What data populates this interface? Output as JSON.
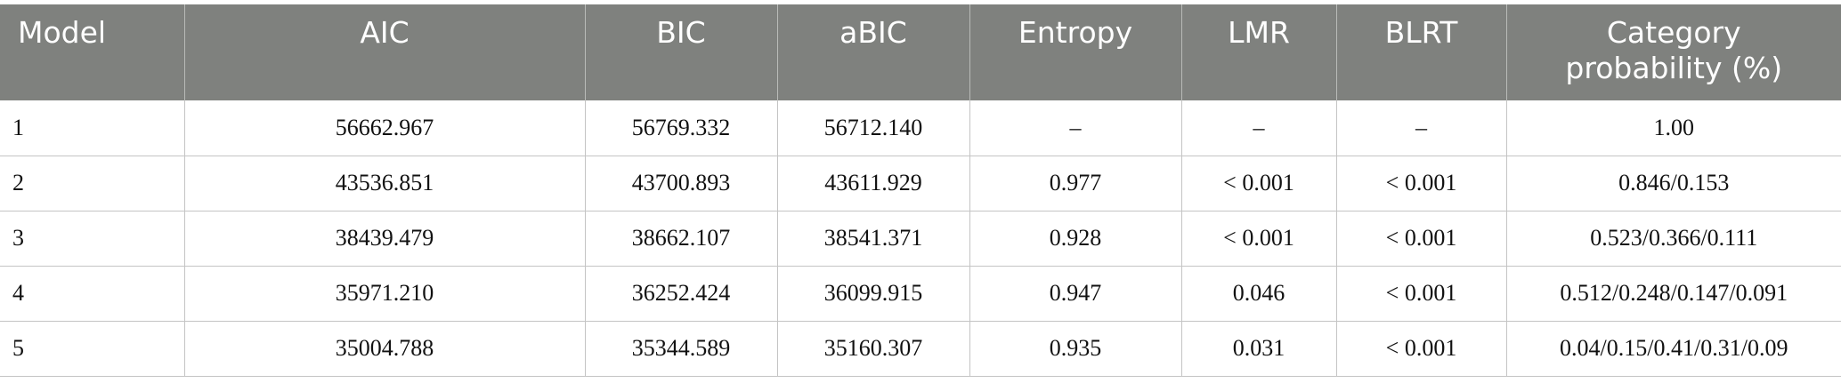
{
  "table": {
    "columns": [
      "Model",
      "AIC",
      "BIC",
      "aBIC",
      "Entropy",
      "LMR",
      "BLRT",
      "Category probability (%)"
    ],
    "rows": [
      [
        "1",
        "56662.967",
        "56769.332",
        "56712.140",
        "–",
        "–",
        "–",
        "1.00"
      ],
      [
        "2",
        "43536.851",
        "43700.893",
        "43611.929",
        "0.977",
        "< 0.001",
        "< 0.001",
        "0.846/0.153"
      ],
      [
        "3",
        "38439.479",
        "38662.107",
        "38541.371",
        "0.928",
        "< 0.001",
        "< 0.001",
        "0.523/0.366/0.111"
      ],
      [
        "4",
        "35971.210",
        "36252.424",
        "36099.915",
        "0.947",
        "0.046",
        "< 0.001",
        "0.512/0.248/0.147/0.091"
      ],
      [
        "5",
        "35004.788",
        "35344.589",
        "35160.307",
        "0.935",
        "0.031",
        "< 0.001",
        "0.04/0.15/0.41/0.31/0.09"
      ]
    ]
  }
}
